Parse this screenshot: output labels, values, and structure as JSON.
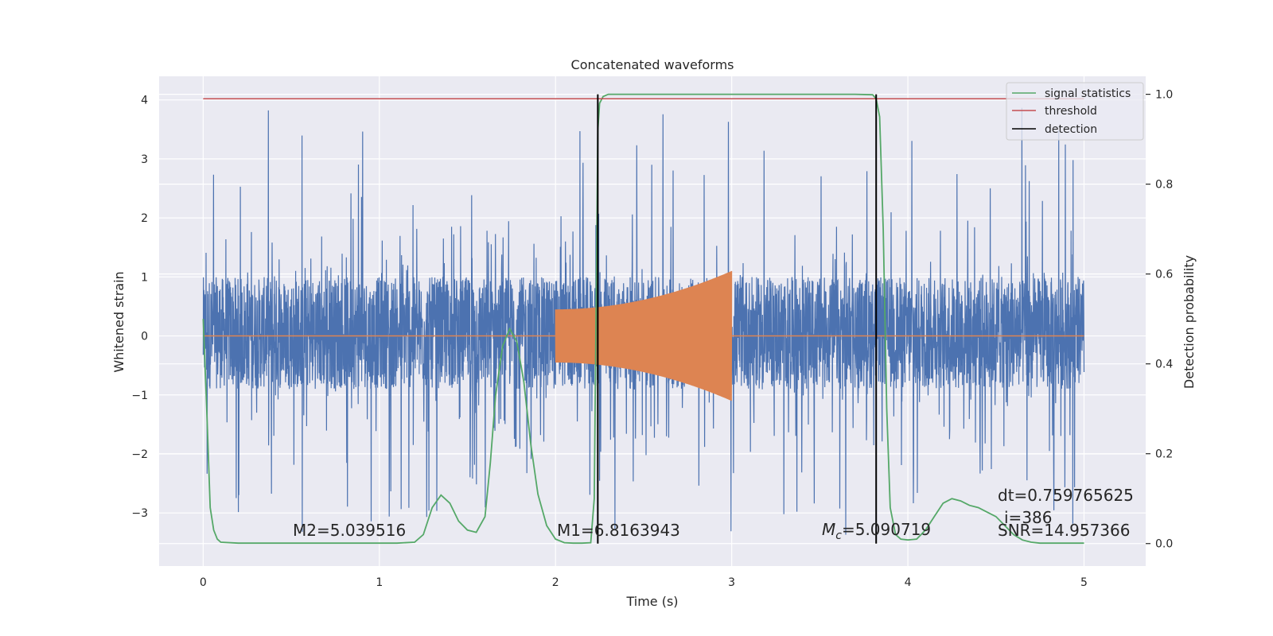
{
  "chart_data": {
    "type": "line",
    "title": "Concatenated waveforms",
    "xlabel": "Time (s)",
    "ylabel": "Whitened strain",
    "ylabel_right": "Detection probability",
    "xlim": [
      -0.25,
      5.35
    ],
    "ylim": [
      -3.9,
      4.4
    ],
    "ylim_right": [
      -0.05,
      1.04
    ],
    "x_ticks": [
      0,
      1,
      2,
      3,
      4,
      5
    ],
    "x_tick_labels": [
      "0",
      "1",
      "2",
      "3",
      "4",
      "5"
    ],
    "y_ticks": [
      -3,
      -2,
      -1,
      0,
      1,
      2,
      3,
      4
    ],
    "y_tick_labels": [
      "−3",
      "−2",
      "−1",
      "0",
      "1",
      "2",
      "3",
      "4"
    ],
    "y_right_ticks": [
      0.0,
      0.2,
      0.4,
      0.6,
      0.8,
      1.0
    ],
    "y_right_tick_labels": [
      "0.0",
      "0.2",
      "0.4",
      "0.6",
      "0.8",
      "1.0"
    ],
    "grid": true,
    "legend_position": "top-right",
    "colors": {
      "strain": "#4c72b0",
      "waveform": "#dd8452",
      "signal_statistics": "#55a868",
      "threshold": "#c44e52",
      "detection": "#000000",
      "background": "#eaeaf2"
    },
    "series": [
      {
        "name": "signal statistics",
        "axis": "right",
        "x": [
          0,
          0.02,
          0.04,
          0.06,
          0.08,
          0.1,
          0.2,
          0.4,
          0.6,
          0.8,
          1.0,
          1.1,
          1.2,
          1.25,
          1.3,
          1.35,
          1.4,
          1.45,
          1.5,
          1.55,
          1.6,
          1.63,
          1.66,
          1.7,
          1.74,
          1.78,
          1.82,
          1.86,
          1.9,
          1.95,
          2.0,
          2.05,
          2.1,
          2.15,
          2.2,
          2.22,
          2.24,
          2.25,
          2.27,
          2.3,
          2.5,
          3.0,
          3.5,
          3.7,
          3.8,
          3.82,
          3.84,
          3.86,
          3.88,
          3.9,
          3.93,
          3.96,
          4.0,
          4.05,
          4.1,
          4.15,
          4.2,
          4.25,
          4.3,
          4.35,
          4.4,
          4.45,
          4.5,
          4.55,
          4.6,
          4.65,
          4.7,
          4.75,
          4.8,
          4.9,
          5.0
        ],
        "values": [
          0.5,
          0.3,
          0.08,
          0.03,
          0.01,
          0.003,
          0.001,
          0.001,
          0.001,
          0.001,
          0.001,
          0.001,
          0.003,
          0.02,
          0.08,
          0.108,
          0.09,
          0.05,
          0.03,
          0.025,
          0.06,
          0.18,
          0.33,
          0.44,
          0.478,
          0.45,
          0.36,
          0.22,
          0.11,
          0.04,
          0.01,
          0.002,
          0.001,
          0.001,
          0.002,
          0.1,
          0.92,
          0.98,
          0.995,
          1.0,
          1.0,
          1.0,
          1.0,
          1.0,
          0.999,
          0.99,
          0.95,
          0.7,
          0.3,
          0.08,
          0.02,
          0.01,
          0.008,
          0.01,
          0.03,
          0.06,
          0.09,
          0.1,
          0.095,
          0.085,
          0.08,
          0.07,
          0.06,
          0.04,
          0.02,
          0.008,
          0.003,
          0.001,
          0.001,
          0.001,
          0.001
        ]
      },
      {
        "name": "threshold",
        "axis": "right",
        "x": [
          0,
          5
        ],
        "values": [
          0.99,
          0.99
        ]
      },
      {
        "name": "detection",
        "axis": "right",
        "x": [
          2.24,
          3.82
        ],
        "values": [
          1.0,
          1.0
        ]
      }
    ],
    "strain_noise": {
      "x_range": [
        0,
        5
      ],
      "core_band": [
        -0.9,
        1.0
      ],
      "peak_range": [
        -3.5,
        4.0
      ]
    },
    "waveform": {
      "x_range": [
        2.0,
        3.0
      ],
      "amplitude_start": 0.45,
      "amplitude_end": 1.1
    },
    "annotations": [
      "M2=5.039516",
      "M1=6.8163943",
      "=5.090719",
      "dt=0.759765625",
      "i=386",
      "SNR=14.957366"
    ],
    "annotation_symbol": "M",
    "annotation_subscript": "c"
  }
}
